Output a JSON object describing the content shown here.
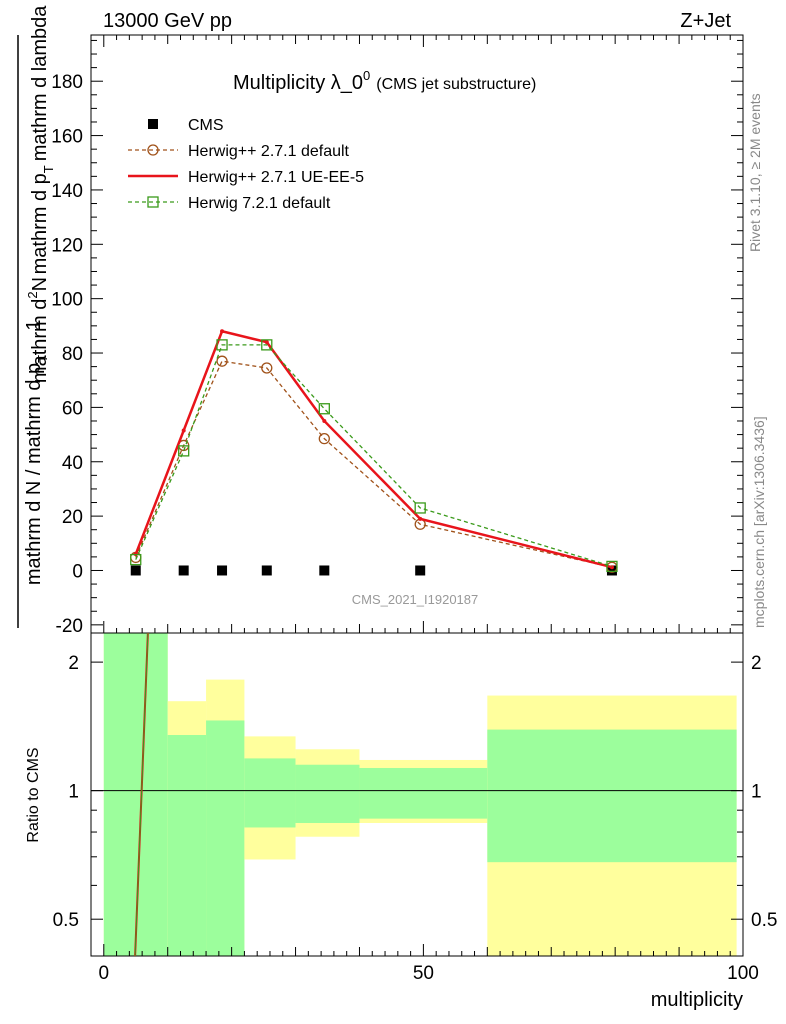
{
  "header": {
    "left": "13000 GeV pp",
    "right": "Z+Jet"
  },
  "side_labels": {
    "rivet": "Rivet 3.1.10, ≥ 2M events",
    "mcplots": "mcplots.cern.ch [arXiv:1306.3436]"
  },
  "watermark": "CMS_2021_I1920187",
  "chart_data": [
    {
      "type": "line",
      "title": "Multiplicity λ_0",
      "title_sup": "0",
      "title_suffix": "(CMS jet substructure)",
      "ylabel": "1 / mathrm d N / mathrm d p_T mathrm d^2N / mathrm d p_T mathrm d lambda",
      "ylabel_num": "mathrm d",
      "ylabel_num_sup": "2",
      "ylabel_num_tail": "N",
      "ylabel_den_a": "mathrm d p",
      "ylabel_den_sub_a": "T",
      "ylabel_den_b": "mathrm d lambda",
      "ylabel_pre": "mathrm d N / mathrm d p",
      "ylabel_pre_sub": "T",
      "ylabel_one": "1",
      "xlim": [
        -2,
        100
      ],
      "ylim": [
        -23,
        197
      ],
      "yticks": [
        -20,
        0,
        20,
        40,
        60,
        80,
        100,
        120,
        140,
        160,
        180
      ],
      "legend_position": "top-left",
      "series": [
        {
          "name": "CMS",
          "color": "#000000",
          "marker": "square-filled",
          "x": [
            5,
            12.5,
            18.5,
            25.5,
            34.5,
            49.5,
            79.5
          ],
          "y": [
            0,
            0,
            0,
            0,
            0,
            0,
            0
          ]
        },
        {
          "name": "Herwig++ 2.7.1 default",
          "color": "#a0521a",
          "marker": "circle-open",
          "dash": "4,3",
          "x": [
            5,
            12.5,
            18.5,
            25.5,
            34.5,
            49.5,
            79.5
          ],
          "y": [
            4.8,
            46,
            77,
            74.5,
            48.5,
            17,
            1.2
          ]
        },
        {
          "name": "Herwig++ 2.7.1 UE-EE-5",
          "color": "#e8141b",
          "marker": "none",
          "x": [
            5,
            12.5,
            18.5,
            25.5,
            34.5,
            49.5,
            79.5
          ],
          "y": [
            6,
            51.5,
            88,
            84,
            55,
            19,
            1.2
          ]
        },
        {
          "name": "Herwig 7.2.1 default",
          "color": "#3a9a1a",
          "marker": "square-open",
          "dash": "4,3",
          "x": [
            5,
            12.5,
            18.5,
            25.5,
            34.5,
            49.5,
            79.5
          ],
          "y": [
            4,
            44,
            83,
            83,
            59.5,
            23,
            1.5
          ]
        }
      ]
    },
    {
      "type": "area",
      "ylabel": "Ratio to CMS",
      "xlabel": "multiplicity",
      "xlim": [
        -2,
        100
      ],
      "ylim": [
        0.41,
        2.34
      ],
      "xticks": [
        0,
        50,
        100
      ],
      "yticks": [
        0.5,
        1,
        2
      ],
      "reference_line": 1,
      "bands": [
        {
          "x0": 0,
          "x1": 10,
          "inner": [
            0.3,
            3.0
          ],
          "outer": [
            0.3,
            3.0
          ]
        },
        {
          "x0": 10,
          "x1": 16,
          "inner": [
            0.3,
            1.35
          ],
          "outer": [
            0.3,
            1.62
          ]
        },
        {
          "x0": 16,
          "x1": 22,
          "inner": [
            0.3,
            1.46
          ],
          "outer": [
            0.3,
            1.82
          ]
        },
        {
          "x0": 22,
          "x1": 30,
          "inner": [
            0.82,
            1.19
          ],
          "outer": [
            0.69,
            1.34
          ]
        },
        {
          "x0": 30,
          "x1": 40,
          "inner": [
            0.84,
            1.15
          ],
          "outer": [
            0.78,
            1.25
          ]
        },
        {
          "x0": 40,
          "x1": 60,
          "inner": [
            0.86,
            1.13
          ],
          "outer": [
            0.84,
            1.18
          ]
        },
        {
          "x0": 60,
          "x1": 99,
          "inner": [
            0.68,
            1.39
          ],
          "outer": [
            0.3,
            1.67
          ]
        }
      ],
      "band_colors": {
        "inner": "#9cfe9c",
        "outer": "#ffff9d"
      },
      "series": [
        {
          "name": "Herwig++ 2.7.1 UE-EE-5",
          "color": "#e8141b",
          "x": [
            4.9,
            6.9
          ],
          "y": [
            0.41,
            2.34
          ]
        },
        {
          "name": "Herwig 7.2.1 default",
          "color": "#3a9a1a",
          "x": [
            4.9,
            6.9
          ],
          "y": [
            0.41,
            2.34
          ]
        }
      ]
    }
  ]
}
